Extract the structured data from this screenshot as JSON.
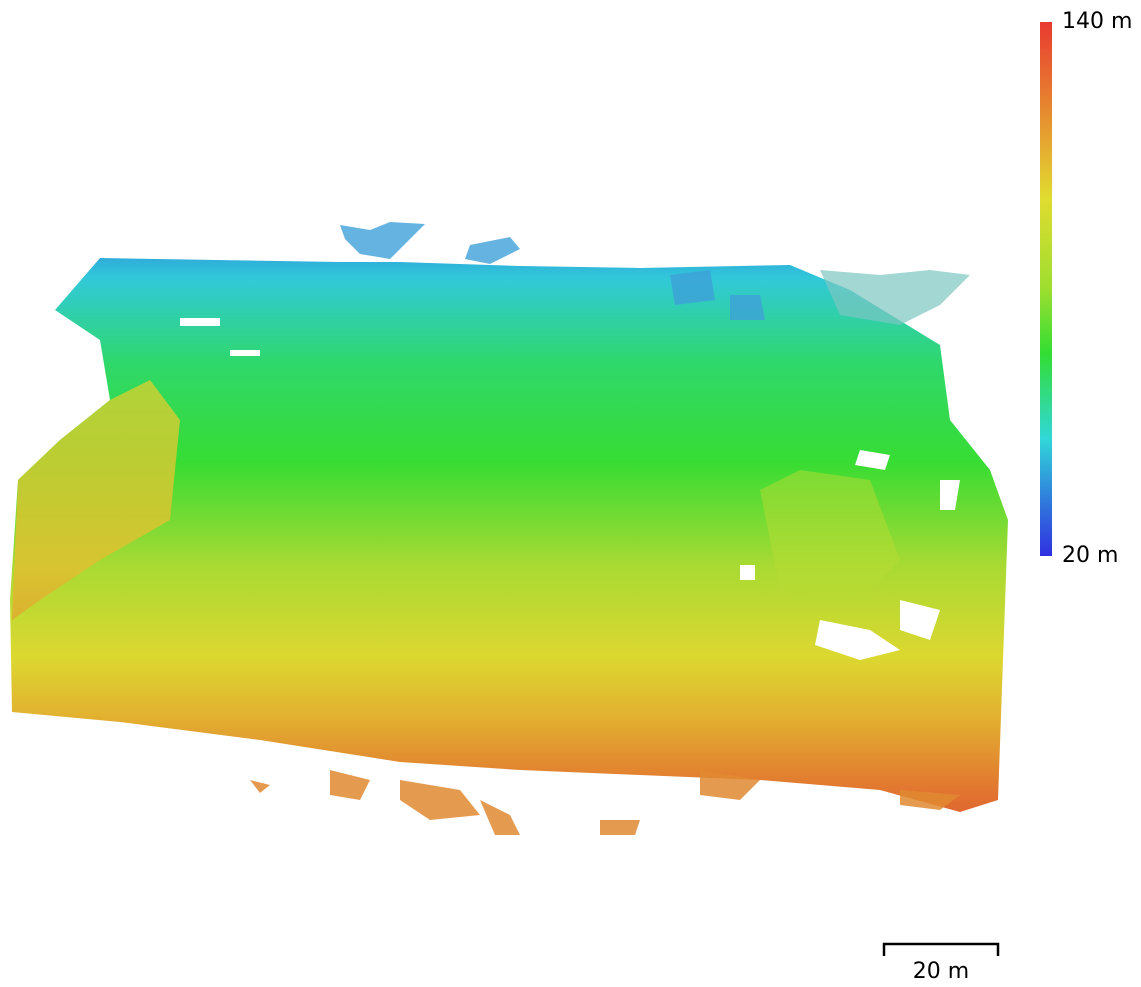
{
  "legend": {
    "max_label": "140 m",
    "min_label": "20 m"
  },
  "scale_bar": {
    "label": "20 m"
  }
}
